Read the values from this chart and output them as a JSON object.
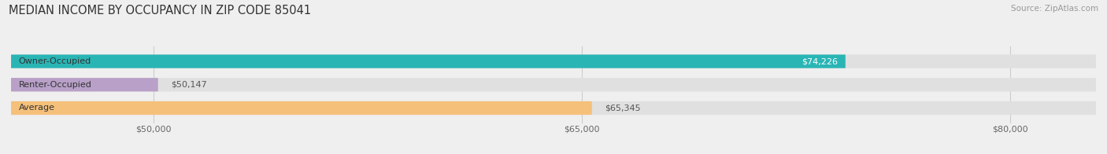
{
  "title": "MEDIAN INCOME BY OCCUPANCY IN ZIP CODE 85041",
  "source": "Source: ZipAtlas.com",
  "categories": [
    "Owner-Occupied",
    "Renter-Occupied",
    "Average"
  ],
  "values": [
    74226,
    50147,
    65345
  ],
  "bar_colors": [
    "#2ab5b5",
    "#b8a0c8",
    "#f5c07a"
  ],
  "label_colors": [
    "#ffffff",
    "#555555",
    "#555555"
  ],
  "value_labels": [
    "$74,226",
    "$50,147",
    "$65,345"
  ],
  "value_inside": [
    true,
    false,
    false
  ],
  "xmin": 45000,
  "xmax": 83000,
  "xticks": [
    50000,
    65000,
    80000
  ],
  "xtick_labels": [
    "$50,000",
    "$65,000",
    "$80,000"
  ],
  "bar_height": 0.58,
  "background_color": "#efefef",
  "bar_background_color": "#e0e0e0",
  "title_fontsize": 10.5,
  "label_fontsize": 8.0,
  "value_fontsize": 8.0
}
